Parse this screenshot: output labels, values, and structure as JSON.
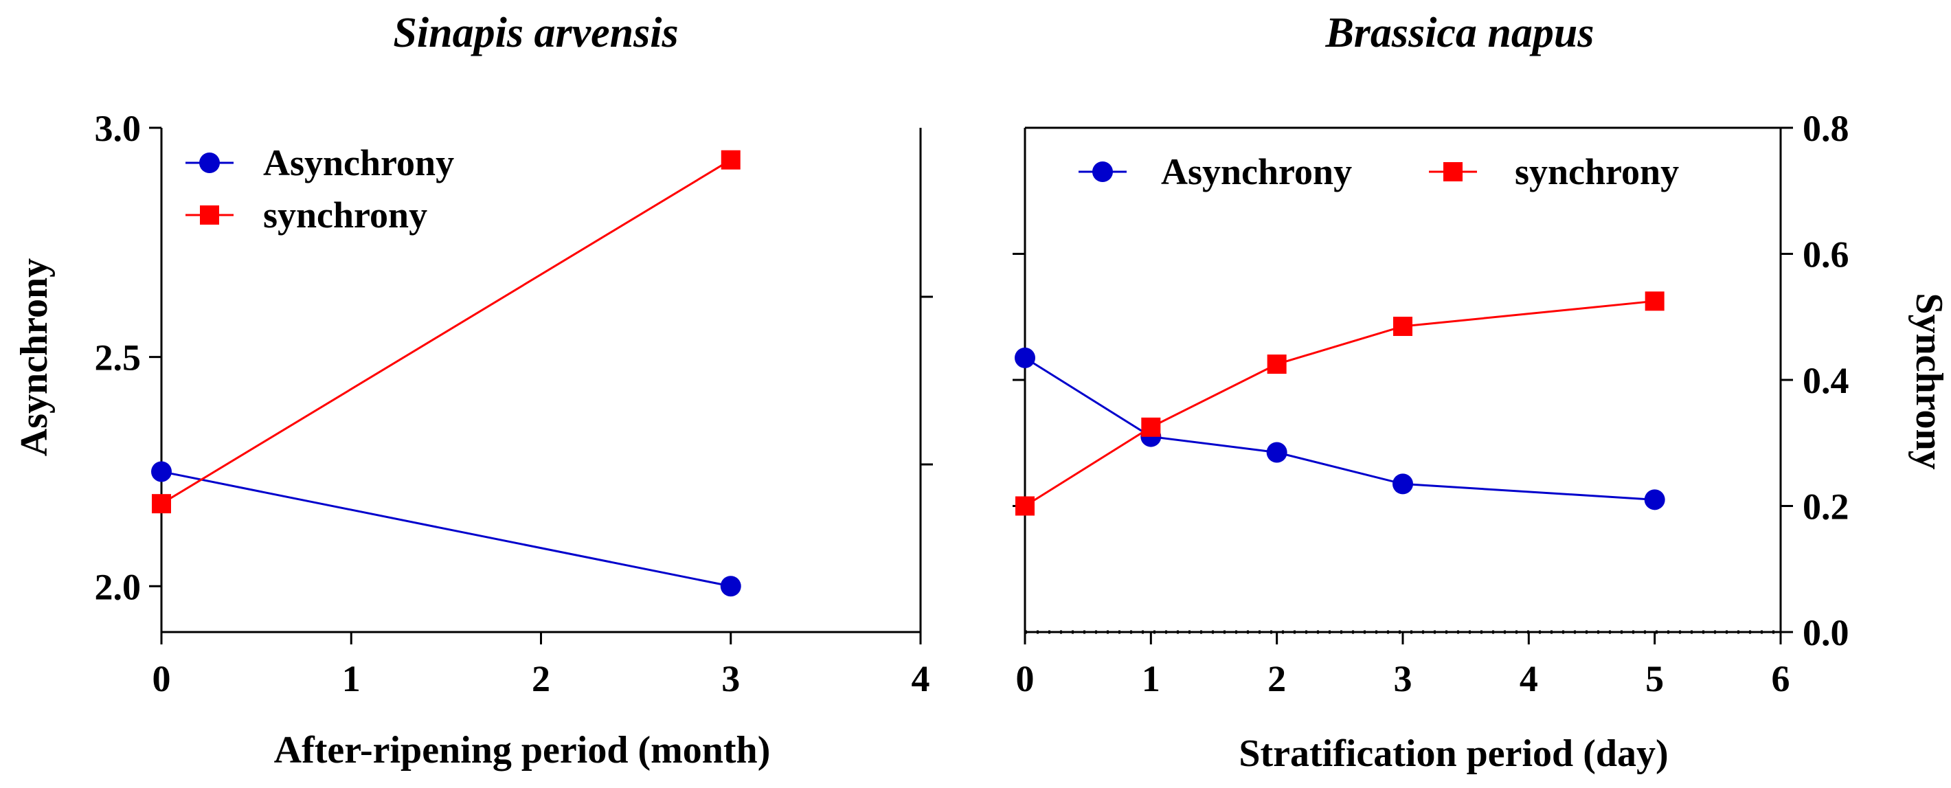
{
  "chart_data": [
    {
      "type": "line",
      "title": "Sinapis arvensis",
      "xlabel": "After-ripening  period (month)",
      "ylabel": "Asynchrony",
      "xlim": [
        0,
        4
      ],
      "ylim": [
        1.9,
        3.0
      ],
      "xticks": [
        "0",
        "1",
        "2",
        "3",
        "4"
      ],
      "yticks": [
        "2.0",
        "2.5",
        "3.0"
      ],
      "legend_position": "top-left",
      "series": [
        {
          "name": "Asynchrony",
          "color": "#0000cc",
          "marker": "circle",
          "axis": "left",
          "x": [
            0,
            3
          ],
          "y": [
            2.25,
            2.0
          ]
        },
        {
          "name": "synchrony",
          "color": "#ff0000",
          "marker": "square",
          "axis": "left",
          "x": [
            0,
            3
          ],
          "y": [
            2.18,
            2.93
          ]
        }
      ]
    },
    {
      "type": "line",
      "title": "Brassica napus",
      "xlabel": "Stratification period (day)",
      "ylabel": "Synchrony",
      "xlim": [
        0,
        6
      ],
      "ylim": [
        0.0,
        0.8
      ],
      "xticks": [
        "0",
        "1",
        "2",
        "3",
        "4",
        "5",
        "6"
      ],
      "yticks": [
        "0.0",
        "0.2",
        "0.4",
        "0.6",
        "0.8"
      ],
      "legend_position": "top",
      "series": [
        {
          "name": "Asynchrony",
          "color": "#0000cc",
          "marker": "circle",
          "axis": "right",
          "x": [
            0,
            1,
            2,
            3,
            5
          ],
          "y": [
            0.435,
            0.31,
            0.285,
            0.235,
            0.21
          ]
        },
        {
          "name": "synchrony",
          "color": "#ff0000",
          "marker": "square",
          "axis": "right",
          "x": [
            0,
            1,
            2,
            3,
            5
          ],
          "y": [
            0.2,
            0.325,
            0.425,
            0.485,
            0.525
          ]
        }
      ]
    }
  ]
}
